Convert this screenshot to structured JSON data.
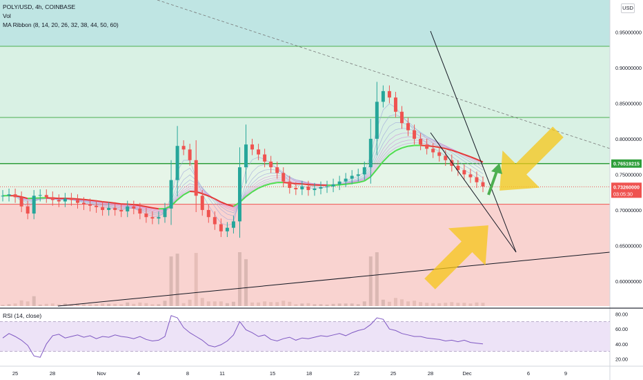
{
  "header": {
    "symbol_line": "POLY/USD, 4h, COINBASE",
    "vol_label": "Vol",
    "ribbon_label": "MA Ribbon (8, 14, 20, 26, 32, 38, 44, 50, 60)",
    "rsi_label": "RSI (14, close)",
    "currency_button": "USD"
  },
  "colors": {
    "zone_top": "#bfe5e3",
    "zone_upper": "#d9f1e4",
    "zone_mid": "#e6f5e8",
    "zone_lower": "#f9d3d0",
    "candle_up": "#26a69a",
    "candle_down": "#ef5350",
    "ribbon_bull": "#4ddd4d",
    "ribbon_bear": "#e53935",
    "rsi_line": "#7e57c2",
    "rsi_band": "#ede3f7",
    "arrow": "#f5c518",
    "small_arrow": "#4caf50"
  },
  "chart_data": {
    "type": "candlestick",
    "price_axis": {
      "ticks": [
        "0.95000000",
        "0.90000000",
        "0.85000000",
        "0.80000000",
        "0.75000000",
        "0.70000000",
        "0.65000000",
        "0.60000000"
      ],
      "tick_values": [
        0.95,
        0.9,
        0.85,
        0.8,
        0.75,
        0.7,
        0.65,
        0.6
      ],
      "ylim": [
        0.565,
        0.995
      ]
    },
    "time_axis": {
      "labels": [
        "25",
        "28",
        "Nov",
        "4",
        "8",
        "11",
        "15",
        "18",
        "22",
        "25",
        "28",
        "Dec",
        "6",
        "9"
      ]
    },
    "horizontal_levels": [
      {
        "value": 0.93,
        "color": "#4caf50"
      },
      {
        "value": 0.83,
        "color": "#4caf50"
      },
      {
        "value": 0.7652,
        "color": "#2e9e3a",
        "label": "0.76519215",
        "bold": true
      },
      {
        "value": 0.7326,
        "color": "#ef5350",
        "dotted": true,
        "label": "0.73260000",
        "sublabel": "03:05:30"
      },
      {
        "value": 0.708,
        "color": "#ef5350"
      }
    ],
    "last_price": 0.7326,
    "countdown": "03:05:30",
    "key_level": 0.76519215,
    "close_series": [
      0.72,
      0.722,
      0.718,
      0.705,
      0.695,
      0.72,
      0.721,
      0.718,
      0.714,
      0.712,
      0.716,
      0.714,
      0.71,
      0.708,
      0.706,
      0.704,
      0.7,
      0.703,
      0.7,
      0.698,
      0.705,
      0.702,
      0.695,
      0.69,
      0.688,
      0.69,
      0.702,
      0.742,
      0.79,
      0.785,
      0.77,
      0.72,
      0.7,
      0.69,
      0.68,
      0.67,
      0.675,
      0.684,
      0.76,
      0.792,
      0.785,
      0.778,
      0.768,
      0.76,
      0.752,
      0.74,
      0.731,
      0.729,
      0.733,
      0.728,
      0.73,
      0.732,
      0.733,
      0.736,
      0.74,
      0.744,
      0.748,
      0.75,
      0.76,
      0.8,
      0.852,
      0.867,
      0.858,
      0.838,
      0.822,
      0.812,
      0.8,
      0.792,
      0.786,
      0.781,
      0.776,
      0.77,
      0.762,
      0.756,
      0.75,
      0.746,
      0.739,
      0.733
    ],
    "rsi_axis": {
      "ticks": [
        "80.00",
        "60.00",
        "40.00",
        "20.00"
      ],
      "tick_values": [
        80,
        60,
        40,
        20
      ],
      "upper_band": 70,
      "lower_band": 30
    },
    "rsi_series": [
      48,
      54,
      50,
      45,
      38,
      24,
      22,
      40,
      51,
      53,
      48,
      50,
      52,
      49,
      51,
      47,
      50,
      49,
      52,
      50,
      49,
      47,
      50,
      46,
      44,
      45,
      50,
      78,
      75,
      62,
      55,
      50,
      45,
      38,
      36,
      39,
      44,
      52,
      70,
      59,
      55,
      50,
      52,
      46,
      44,
      47,
      49,
      45,
      48,
      47,
      49,
      51,
      50,
      52,
      54,
      51,
      55,
      58,
      60,
      66,
      75,
      73,
      60,
      58,
      54,
      52,
      50,
      50,
      48,
      47,
      46,
      44,
      45,
      43,
      45,
      42,
      41,
      40
    ]
  }
}
